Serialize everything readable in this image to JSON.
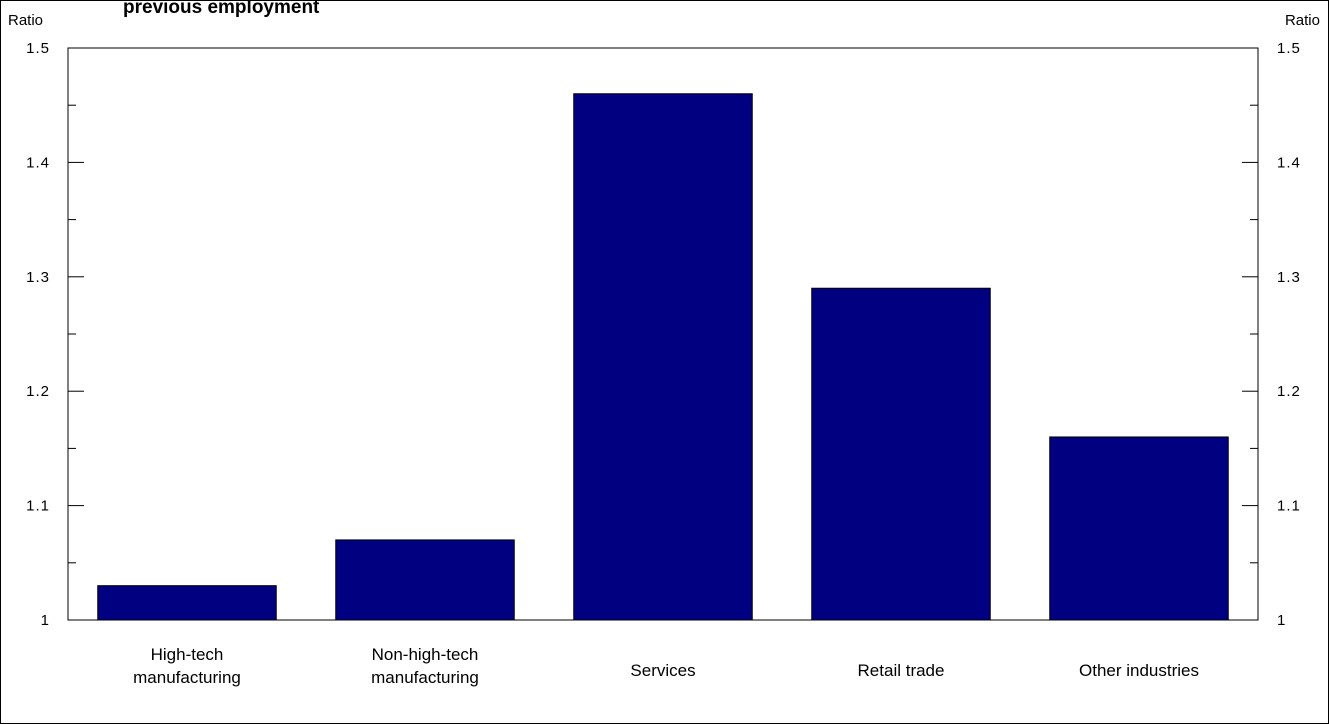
{
  "chart_data": {
    "type": "bar",
    "title": "previous employment",
    "ylabel_left": "Ratio",
    "ylabel_right": "Ratio",
    "categories": [
      [
        "High-tech",
        "manufacturing"
      ],
      [
        "Non-high-tech",
        "manufacturing"
      ],
      [
        "Services"
      ],
      [
        "Retail trade"
      ],
      [
        "Other industries"
      ]
    ],
    "values": [
      1.03,
      1.07,
      1.46,
      1.29,
      1.16
    ],
    "ylim": [
      1,
      1.5
    ],
    "yticks": [
      1,
      1.1,
      1.2,
      1.3,
      1.4,
      1.5
    ],
    "ytick_labels": [
      "1",
      "1.1",
      "1.2",
      "1.3",
      "1.4",
      "1.5"
    ],
    "minor_ticks": true,
    "grid": false,
    "bar_color": "#000080"
  }
}
